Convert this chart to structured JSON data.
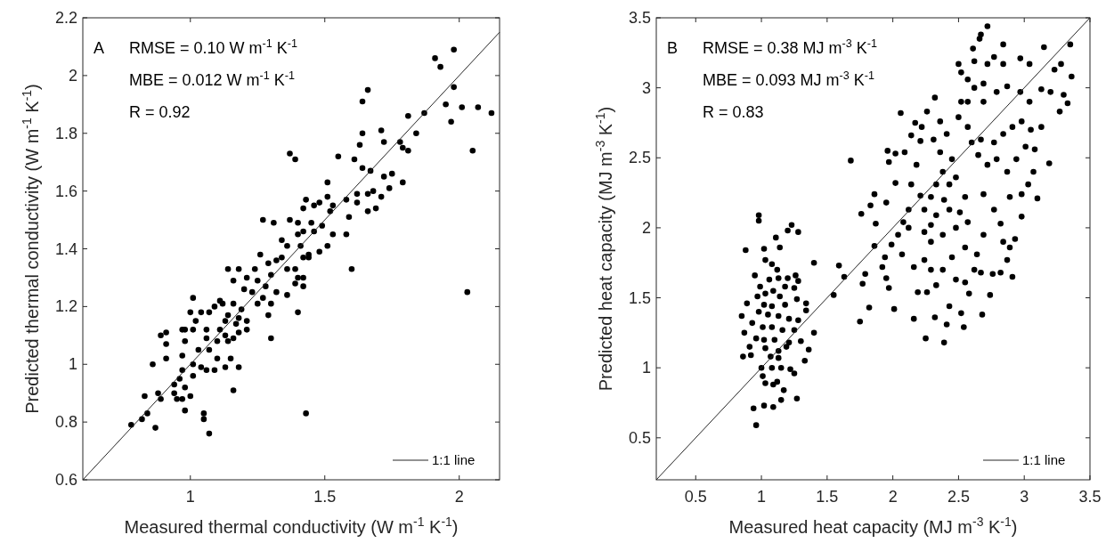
{
  "chart_data": [
    {
      "type": "scatter",
      "xlabel": "Measured thermal conductivity (W m$^{-1}$ K$^{-1}$)",
      "ylabel": "Predicted thermal conductivity (W m$^{-1}$ K$^{-1}$)",
      "annotations": [
        "A",
        "RMSE = 0.10 W m$^{-1}$ K$^{-1}$",
        "MBE = 0.012 W m$^{-1}$ K$^{-1}$",
        "R = 0.92"
      ],
      "xlim": [
        0.6,
        2.15
      ],
      "ylim": [
        0.6,
        2.2
      ],
      "xticks": [
        1,
        1.5,
        2
      ],
      "yticks": [
        0.6,
        0.8,
        1,
        1.2,
        1.4,
        1.6,
        1.8,
        2,
        2.2
      ],
      "grid": false,
      "legend": "bottom right",
      "marker": "circle",
      "series": [
        {
          "type": "scatter",
          "color": "#000000",
          "x": [
            1.98,
            1.91,
            1.93,
            1.98,
            1.95,
            2.01,
            2.07,
            2.12,
            1.97,
            2.05,
            2.03,
            1.66,
            1.64,
            1.87,
            1.81,
            1.84,
            1.64,
            1.71,
            1.72,
            1.63,
            1.78,
            1.81,
            1.79,
            1.37,
            1.39,
            1.55,
            1.61,
            1.64,
            1.67,
            1.75,
            1.72,
            1.79,
            1.74,
            1.71,
            1.68,
            1.62,
            1.66,
            1.62,
            1.69,
            1.66,
            1.58,
            1.51,
            1.43,
            1.48,
            1.51,
            1.53,
            1.52,
            1.59,
            1.42,
            1.46,
            1.27,
            1.31,
            1.37,
            1.4,
            1.45,
            1.49,
            1.46,
            1.4,
            1.42,
            1.53,
            1.58,
            1.51,
            1.48,
            1.34,
            1.36,
            1.41,
            1.44,
            1.42,
            1.44,
            1.34,
            1.32,
            1.29,
            1.26,
            1.36,
            1.39,
            1.4,
            1.42,
            1.39,
            1.42,
            1.6,
            1.14,
            1.18,
            1.24,
            1.21,
            1.3,
            1.25,
            1.28,
            1.32,
            1.36,
            1.2,
            1.16,
            1.23,
            1.27,
            1.3,
            1.25,
            1.19,
            1.16,
            1.14,
            1.18,
            1.21,
            1.17,
            1.13,
            1.11,
            1.13,
            1.16,
            1.18,
            1.21,
            1.29,
            1.4,
            1.3,
            1.11,
            1.12,
            1.07,
            1.09,
            1.04,
            1.01,
            1.0,
            1.02,
            1.01,
            0.98,
            1.06,
            1.06,
            1.1,
            1.14,
            1.07,
            1.03,
            0.98,
            0.97,
            0.91,
            0.89,
            0.91,
            0.97,
            1.01,
            1.04,
            1.06,
            1.09,
            1.13,
            1.15,
            1.18,
            1.1,
            0.86,
            0.91,
            0.97,
            1.01,
            0.96,
            0.94,
            0.98,
            0.97,
            1.0,
            0.94,
            0.95,
            0.88,
            0.89,
            0.83,
            0.84,
            0.82,
            0.78,
            0.87,
            0.98,
            1.05,
            1.05,
            1.07,
            1.16,
            1.43
          ],
          "values": [
            2.09,
            2.06,
            2.03,
            1.96,
            1.9,
            1.89,
            1.89,
            1.87,
            1.84,
            1.74,
            1.25,
            1.95,
            1.91,
            1.87,
            1.86,
            1.8,
            1.8,
            1.81,
            1.77,
            1.76,
            1.77,
            1.74,
            1.75,
            1.73,
            1.71,
            1.72,
            1.71,
            1.68,
            1.67,
            1.66,
            1.65,
            1.63,
            1.61,
            1.58,
            1.6,
            1.59,
            1.59,
            1.56,
            1.54,
            1.53,
            1.57,
            1.63,
            1.57,
            1.56,
            1.58,
            1.55,
            1.53,
            1.51,
            1.54,
            1.55,
            1.5,
            1.49,
            1.5,
            1.49,
            1.49,
            1.48,
            1.46,
            1.45,
            1.46,
            1.45,
            1.45,
            1.41,
            1.39,
            1.43,
            1.41,
            1.41,
            1.38,
            1.37,
            1.37,
            1.37,
            1.36,
            1.35,
            1.38,
            1.33,
            1.33,
            1.3,
            1.3,
            1.28,
            1.27,
            1.33,
            1.33,
            1.33,
            1.33,
            1.3,
            1.31,
            1.29,
            1.27,
            1.25,
            1.24,
            1.26,
            1.29,
            1.25,
            1.23,
            1.21,
            1.21,
            1.19,
            1.21,
            1.17,
            1.16,
            1.15,
            1.14,
            1.15,
            1.12,
            1.1,
            1.09,
            1.11,
            1.12,
            1.17,
            1.18,
            1.09,
            1.22,
            1.21,
            1.18,
            1.2,
            1.18,
            1.23,
            1.18,
            1.15,
            1.12,
            1.12,
            1.12,
            1.09,
            1.08,
            1.08,
            1.05,
            1.05,
            1.08,
            1.12,
            1.11,
            1.1,
            1.07,
            1.03,
            1.0,
            0.99,
            0.98,
            0.98,
            0.99,
            1.02,
            0.99,
            1.02,
            1.0,
            1.02,
            0.98,
            0.96,
            0.95,
            0.93,
            0.92,
            0.88,
            0.89,
            0.9,
            0.88,
            0.9,
            0.88,
            0.89,
            0.83,
            0.81,
            0.79,
            0.78,
            0.84,
            0.83,
            0.81,
            0.76,
            0.91,
            0.83
          ]
        },
        {
          "type": "line",
          "name": "1:1 line",
          "color": "#262626",
          "marker": "none",
          "x": [
            0.6,
            2.15
          ],
          "values": [
            0.6,
            2.15
          ]
        }
      ]
    },
    {
      "type": "scatter",
      "xlabel": "Measured heat capacity (MJ m$^{-3}$ K$^{-1}$)",
      "ylabel": "Predicted heat capacity (MJ m$^{-3}$ K$^{-1}$)",
      "annotations": [
        "B",
        "RMSE = 0.38 MJ m$^{-3}$ K$^{-1}$",
        "MBE = 0.093 MJ m$^{-3}$ K$^{-1}$",
        "R = 0.83"
      ],
      "xlim": [
        0.2,
        3.5
      ],
      "ylim": [
        0.2,
        3.5
      ],
      "xticks": [
        0.5,
        1,
        1.5,
        2,
        2.5,
        3,
        3.5
      ],
      "yticks": [
        0.5,
        1,
        1.5,
        2,
        2.5,
        3,
        3.5
      ],
      "grid": false,
      "legend": "bottom right",
      "marker": "circle",
      "series": [
        {
          "type": "scatter",
          "color": "#000000",
          "x": [
            0.98,
            0.98,
            1.23,
            1.2,
            1.28,
            1.11,
            0.88,
            1.02,
            1.14,
            1.03,
            1.08,
            1.12,
            1.4,
            0.95,
            1.13,
            1.2,
            1.26,
            1.28,
            1.06,
            0.99,
            1.09,
            1.18,
            1.25,
            0.97,
            1.03,
            1.14,
            1.27,
            1.34,
            0.89,
            1.02,
            1.08,
            1.18,
            1.34,
            0.98,
            1.05,
            1.13,
            1.21,
            1.28,
            0.85,
            0.93,
            1.01,
            1.08,
            1.16,
            1.25,
            0.87,
            0.96,
            1.02,
            1.1,
            1.21,
            1.3,
            1.4,
            1.36,
            0.91,
            1.03,
            1.13,
            1.19,
            0.86,
            0.92,
            1.07,
            1.13,
            1.33,
            1.0,
            1.08,
            1.15,
            1.22,
            1.25,
            1.01,
            1.03,
            1.09,
            1.12,
            1.17,
            1.15,
            1.27,
            1.02,
            1.09,
            0.94,
            0.96,
            1.55,
            1.59,
            1.63,
            1.68,
            1.75,
            1.82,
            1.77,
            1.79,
            1.76,
            1.83,
            1.86,
            1.87,
            1.86,
            1.96,
            1.97,
            2.06,
            2.02,
            2.09,
            1.95,
            2.02,
            1.94,
            1.92,
            1.95,
            1.97,
            2.01,
            2.04,
            1.99,
            2.08,
            2.12,
            2.14,
            2.18,
            2.17,
            2.22,
            2.21,
            2.14,
            2.21,
            2.24,
            2.29,
            2.33,
            2.32,
            2.26,
            2.36,
            2.31,
            2.41,
            2.36,
            2.38,
            2.45,
            2.43,
            2.48,
            2.39,
            2.33,
            2.43,
            2.29,
            2.24,
            2.12,
            2.07,
            2.16,
            2.24,
            2.29,
            2.38,
            2.48,
            2.51,
            2.55,
            2.57,
            2.55,
            2.45,
            2.38,
            2.29,
            2.33,
            2.26,
            2.19,
            2.48,
            2.55,
            2.58,
            2.62,
            2.64,
            2.69,
            2.67,
            2.74,
            2.43,
            2.32,
            2.16,
            2.41,
            2.52,
            2.54,
            2.68,
            2.25,
            2.39,
            2.69,
            2.77,
            2.82,
            2.84,
            2.89,
            2.87,
            2.76,
            2.91,
            2.82,
            2.93,
            2.98,
            2.89,
            2.98,
            3.03,
            3.1,
            3.07,
            3.19,
            3.08,
            3.01,
            2.94,
            2.87,
            2.79,
            2.72,
            2.65,
            2.6,
            2.67,
            2.77,
            2.84,
            2.91,
            2.98,
            3.05,
            3.13,
            2.57,
            2.5,
            2.57,
            2.52,
            2.69,
            2.79,
            2.87,
            2.97,
            3.04,
            3.13,
            3.2,
            3.27,
            3.33,
            3.3,
            3.23,
            3.28,
            3.36,
            3.35,
            3.15,
            3.04,
            2.97,
            2.84,
            2.84,
            2.77,
            2.72,
            2.69,
            2.62,
            2.61,
            2.66,
            2.67,
            2.72,
            2.5,
            2.52,
            2.57,
            2.62
          ],
          "values": [
            2.09,
            2.05,
            2.02,
            1.98,
            1.97,
            1.93,
            1.84,
            1.85,
            1.86,
            1.77,
            1.74,
            1.7,
            1.75,
            1.66,
            1.64,
            1.64,
            1.66,
            1.62,
            1.63,
            1.58,
            1.55,
            1.58,
            1.57,
            1.51,
            1.53,
            1.51,
            1.49,
            1.46,
            1.46,
            1.45,
            1.44,
            1.45,
            1.41,
            1.4,
            1.38,
            1.37,
            1.35,
            1.34,
            1.37,
            1.32,
            1.29,
            1.29,
            1.27,
            1.27,
            1.25,
            1.21,
            1.2,
            1.2,
            1.18,
            1.19,
            1.25,
            1.13,
            1.15,
            1.14,
            1.12,
            1.15,
            1.08,
            1.09,
            1.08,
            1.07,
            1.05,
            1.0,
            1.0,
            1.0,
            0.99,
            0.96,
            0.94,
            0.89,
            0.88,
            0.9,
            0.84,
            0.77,
            0.78,
            0.73,
            0.72,
            0.71,
            0.59,
            1.52,
            1.73,
            1.65,
            2.48,
            1.33,
            1.43,
            1.6,
            1.67,
            2.1,
            2.16,
            2.24,
            2.03,
            1.87,
            2.55,
            2.47,
            2.82,
            2.53,
            2.54,
            2.18,
            2.32,
            1.79,
            1.72,
            1.64,
            1.57,
            1.42,
            1.95,
            1.88,
            2.04,
            2.13,
            2.31,
            2.45,
            2.75,
            2.72,
            2.62,
            2.66,
            2.23,
            2.13,
            2.22,
            2.31,
            2.93,
            2.83,
            2.76,
            2.63,
            2.67,
            2.54,
            2.4,
            2.49,
            2.31,
            2.36,
            2.2,
            2.09,
            2.13,
            2.02,
            1.97,
            2.0,
            1.81,
            1.72,
            1.77,
            1.9,
            1.95,
            2.0,
            2.11,
            2.22,
            2.04,
            1.86,
            1.79,
            1.7,
            1.7,
            1.59,
            1.54,
            1.54,
            1.63,
            1.61,
            1.53,
            1.7,
            1.81,
            1.95,
            1.68,
            1.52,
            1.44,
            1.36,
            1.35,
            1.31,
            1.39,
            1.29,
            1.38,
            1.21,
            1.18,
            2.24,
            2.13,
            2.03,
            1.9,
            1.86,
            1.77,
            1.67,
            1.65,
            1.68,
            1.92,
            2.08,
            2.22,
            2.24,
            2.31,
            2.21,
            2.4,
            2.46,
            2.56,
            2.58,
            2.49,
            2.4,
            2.49,
            2.45,
            2.52,
            2.61,
            2.63,
            2.61,
            2.67,
            2.72,
            2.76,
            2.7,
            2.72,
            2.72,
            2.79,
            2.9,
            2.9,
            2.9,
            2.97,
            3.01,
            2.97,
            2.9,
            2.99,
            2.97,
            2.83,
            2.89,
            2.95,
            3.13,
            3.17,
            3.08,
            3.31,
            3.29,
            3.17,
            3.21,
            3.17,
            3.31,
            3.22,
            3.17,
            3.03,
            3.19,
            3.28,
            3.35,
            3.38,
            3.44,
            3.17,
            3.11,
            3.06,
            3.0
          ]
        },
        {
          "type": "line",
          "name": "1:1 line",
          "color": "#262626",
          "marker": "none",
          "x": [
            0.2,
            3.5
          ],
          "values": [
            0.2,
            3.5
          ]
        }
      ]
    }
  ]
}
